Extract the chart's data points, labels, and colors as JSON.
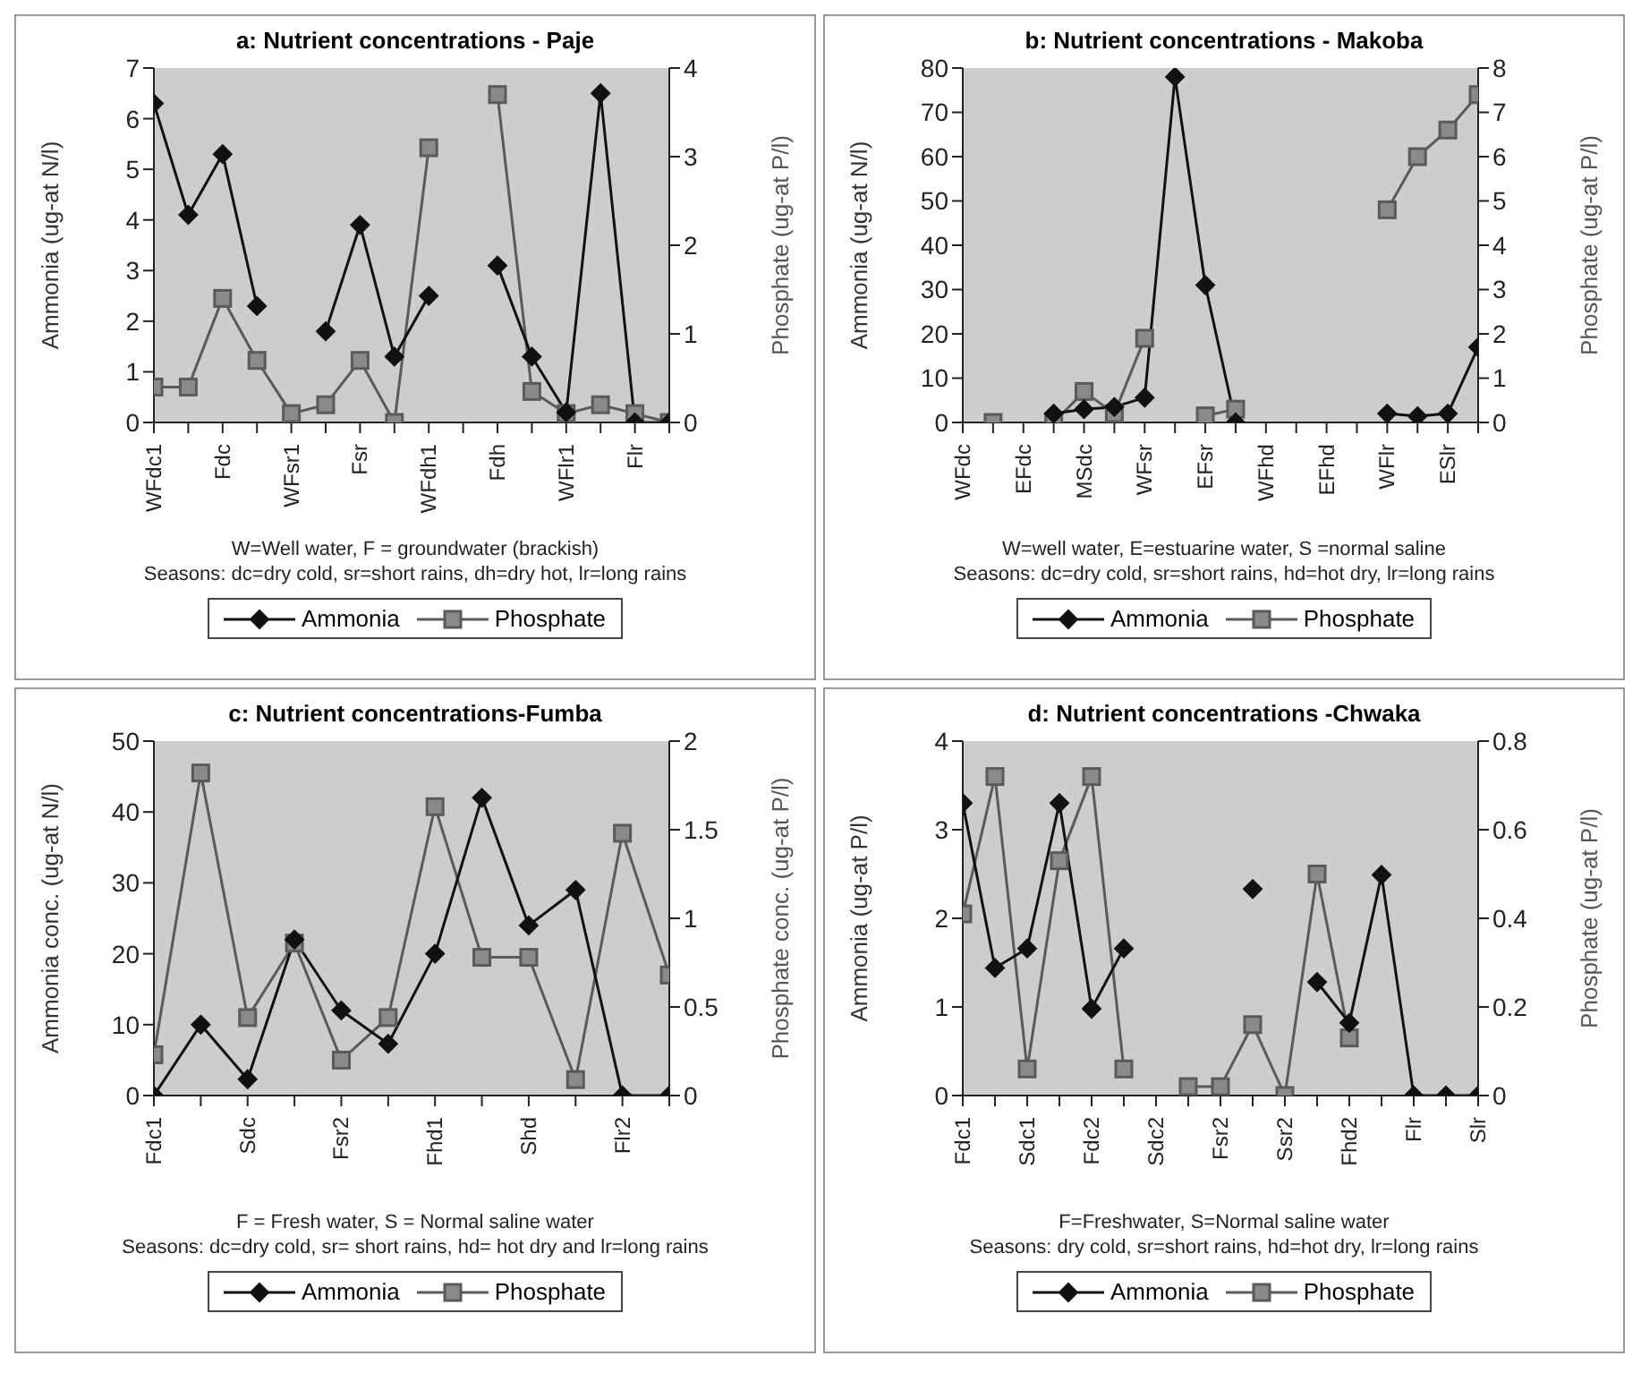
{
  "chart_data": [
    {
      "type": "line",
      "title": "a: Nutrient concentrations - Paje",
      "ylabel": "Ammonia (ug-at N/l)",
      "y2label": "Phosphate (ug-at P/l)",
      "categories": [
        "WFdc1",
        null,
        "Fdc",
        null,
        "WFsr1",
        null,
        "Fsr",
        null,
        "WFdh1",
        null,
        "Fdh",
        null,
        "WFlr1",
        null,
        "Flr",
        null
      ],
      "series": [
        {
          "name": "Ammonia",
          "color": "#111111",
          "marker": "diamond",
          "values": [
            6.3,
            4.1,
            5.3,
            2.3,
            null,
            1.8,
            3.9,
            1.3,
            2.5,
            null,
            3.1,
            1.3,
            0.2,
            6.5,
            0,
            0
          ]
        },
        {
          "name": "Phosphate",
          "color": "#5a5a5a",
          "marker": "square",
          "axis": "y2",
          "values": [
            0.4,
            0.4,
            1.4,
            0.7,
            0.1,
            0.2,
            0.7,
            0,
            3.1,
            null,
            3.7,
            0.35,
            0.1,
            0.2,
            0.1,
            0
          ]
        }
      ],
      "ylim": [
        0,
        7
      ],
      "yticks": [
        0,
        1,
        2,
        3,
        4,
        5,
        6,
        7
      ],
      "y2lim": [
        0,
        4
      ],
      "y2ticks": [
        0,
        1,
        2,
        3,
        4
      ],
      "legend": "bottom",
      "annotations": [
        "W=Well water, F = groundwater (brackish)",
        "Seasons: dc=dry cold, sr=short rains, dh=dry hot, lr=long rains"
      ]
    },
    {
      "type": "line",
      "title": "b: Nutrient concentrations - Makoba",
      "ylabel": "Ammonia (ug-at N/l)",
      "y2label": "Phosphate (ug-at P/l)",
      "categories": [
        "WFdc",
        null,
        "EFdc",
        null,
        "MSdc",
        null,
        "WFsr",
        null,
        "EFsr",
        null,
        "WFhd",
        null,
        "EFhd",
        null,
        "WFlr",
        null,
        "ESlr",
        null
      ],
      "series": [
        {
          "name": "Ammonia",
          "color": "#111111",
          "marker": "diamond",
          "values": [
            null,
            null,
            null,
            2,
            3,
            3.5,
            5.6,
            78,
            31,
            0,
            null,
            null,
            null,
            null,
            2,
            1.4,
            2,
            17
          ]
        },
        {
          "name": "Phosphate",
          "color": "#5a5a5a",
          "marker": "square",
          "axis": "y2",
          "values": [
            null,
            0,
            null,
            0,
            0.7,
            0.2,
            1.9,
            null,
            0.15,
            0.3,
            null,
            null,
            null,
            null,
            4.8,
            6.0,
            6.6,
            7.4
          ]
        }
      ],
      "ylim": [
        0,
        80
      ],
      "yticks": [
        0,
        10,
        20,
        30,
        40,
        50,
        60,
        70,
        80
      ],
      "y2lim": [
        0,
        8
      ],
      "y2ticks": [
        0,
        1,
        2,
        3,
        4,
        5,
        6,
        7,
        8
      ],
      "legend": "bottom",
      "annotations": [
        "W=well water, E=estuarine water, S =normal saline",
        "Seasons: dc=dry cold, sr=short rains, hd=hot dry, lr=long rains"
      ]
    },
    {
      "type": "line",
      "title": "c: Nutrient concentrations-Fumba",
      "ylabel": "Ammonia conc. (ug-at N/l)",
      "y2label": "Phosphate conc. (ug-at P/l)",
      "categories": [
        "Fdc1",
        null,
        "Sdc",
        null,
        "Fsr2",
        null,
        "Fhd1",
        null,
        "Shd",
        null,
        "Flr2",
        null
      ],
      "series": [
        {
          "name": "Ammonia",
          "color": "#111111",
          "marker": "diamond",
          "values": [
            0,
            10,
            2.3,
            22,
            12,
            7.3,
            20,
            42,
            24,
            29,
            0,
            0
          ]
        },
        {
          "name": "Phosphate",
          "color": "#5a5a5a",
          "marker": "square",
          "axis": "y2",
          "values": [
            0.23,
            1.82,
            0.44,
            0.86,
            0.2,
            0.44,
            1.63,
            0.78,
            0.78,
            0.09,
            1.48,
            0.68
          ]
        }
      ],
      "ylim": [
        0,
        50
      ],
      "yticks": [
        0,
        10,
        20,
        30,
        40,
        50
      ],
      "y2lim": [
        0,
        2
      ],
      "y2ticks": [
        0,
        0.5,
        1,
        1.5,
        2
      ],
      "legend": "bottom",
      "annotations": [
        "F = Fresh water, S = Normal saline water",
        "Seasons: dc=dry cold, sr= short rains, hd= hot dry and lr=long rains"
      ]
    },
    {
      "type": "line",
      "title": "d: Nutrient concentrations -Chwaka",
      "ylabel": "Ammonia (ug-at P/l)",
      "y2label": "Phosphate (ug-at P/l)",
      "categories": [
        "Fdc1",
        null,
        "Sdc1",
        null,
        "Fdc2",
        null,
        "Sdc2",
        null,
        "Fsr2",
        null,
        "Ssr2",
        null,
        "Fhd2",
        null,
        "Flr",
        null,
        "Slr"
      ],
      "series": [
        {
          "name": "Ammonia",
          "color": "#111111",
          "marker": "diamond",
          "values": [
            3.3,
            1.44,
            1.66,
            3.3,
            0.98,
            1.66,
            null,
            null,
            null,
            2.33,
            null,
            1.28,
            0.82,
            2.49,
            0,
            0,
            0
          ]
        },
        {
          "name": "Phosphate",
          "color": "#5a5a5a",
          "marker": "square",
          "axis": "y2",
          "values": [
            0.41,
            0.72,
            0.06,
            0.53,
            0.72,
            0.06,
            null,
            0.02,
            0.02,
            0.16,
            0,
            0.5,
            0.13,
            null,
            null,
            null,
            null
          ]
        }
      ],
      "ylim": [
        0,
        4
      ],
      "yticks": [
        0,
        1,
        2,
        3,
        4
      ],
      "y2lim": [
        0,
        0.8
      ],
      "y2ticks": [
        0,
        0.2,
        0.4,
        0.6,
        0.8
      ],
      "legend": "bottom",
      "annotations": [
        "F=Freshwater, S=Normal saline water",
        "Seasons: dry cold, sr=short rains, hd=hot dry, lr=long rains"
      ]
    }
  ]
}
